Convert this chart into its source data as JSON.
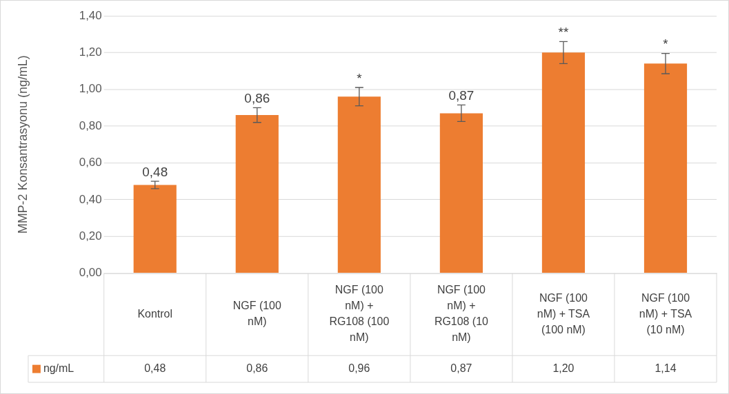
{
  "chart_data": {
    "type": "bar",
    "ylabel": "MMP-2 Konsantrasyonu (ng/mL)",
    "categories": [
      "Kontrol",
      "NGF (100 nM)",
      "NGF (100 nM) + RG108 (100 nM)",
      "NGF (100 nM) + RG108 (10 nM)",
      "NGF (100 nM) + TSA (100 nM)",
      "NGF (100 nM) + TSA (10 nM)"
    ],
    "series": [
      {
        "name": "ng/mL",
        "color": "#ed7d31",
        "values": [
          0.48,
          0.86,
          0.96,
          0.87,
          1.2,
          1.14
        ],
        "errors": [
          0.02,
          0.04,
          0.05,
          0.045,
          0.06,
          0.055
        ],
        "value_labels": [
          "0,48",
          "0,86",
          "0,96",
          "0,87",
          "1,20",
          "1,14"
        ]
      }
    ],
    "ylim": [
      0,
      1.4
    ],
    "yticks": [
      {
        "value": 0,
        "label": "0,00"
      },
      {
        "value": 0.2,
        "label": "0,20"
      },
      {
        "value": 0.4,
        "label": "0,40"
      },
      {
        "value": 0.6,
        "label": "0,60"
      },
      {
        "value": 0.8,
        "label": "0,80"
      },
      {
        "value": 1,
        "label": "1,00"
      },
      {
        "value": 1.2,
        "label": "1,20"
      },
      {
        "value": 1.4,
        "label": "1,40"
      }
    ],
    "grid": "y",
    "legend": "bottom",
    "annotations": [
      {
        "text": "0,48",
        "x": "Kontrol",
        "y": 0.48
      },
      {
        "text": "0,86",
        "x": "NGF (100 nM)",
        "y": 0.86
      },
      {
        "text": "*",
        "x": "NGF (100 nM) + RG108 (100 nM)",
        "y": 0.96
      },
      {
        "text": "0,87",
        "x": "NGF (100 nM) + RG108 (10 nM)",
        "y": 0.87
      },
      {
        "text": "**",
        "x": "NGF (100 nM) + TSA (100 nM)",
        "y": 1.2
      },
      {
        "text": "*",
        "x": "NGF (100 nM) + TSA (10 nM)",
        "y": 1.14
      }
    ]
  }
}
